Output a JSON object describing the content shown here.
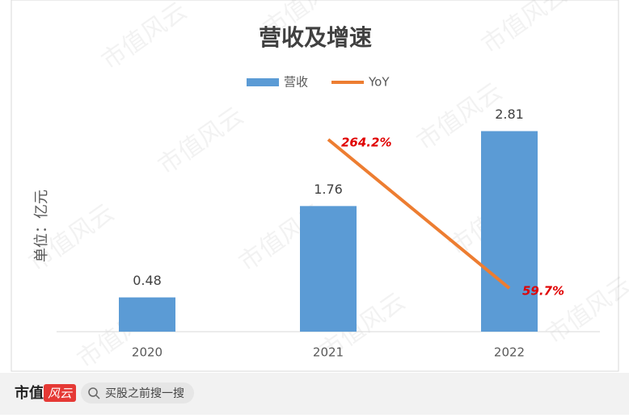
{
  "chart_data": {
    "type": "bar",
    "title": "营收及增速",
    "y_label": "单位：亿元",
    "categories": [
      "2020",
      "2021",
      "2022"
    ],
    "series": [
      {
        "name": "营收",
        "type": "bar",
        "color": "#5b9bd5",
        "values": [
          0.48,
          1.76,
          2.81
        ]
      },
      {
        "name": "YoY",
        "type": "line",
        "axis": "y2",
        "color": "#ed7d31",
        "values": [
          null,
          264.2,
          59.7
        ],
        "value_labels": [
          null,
          "264.2%",
          "59.7%"
        ]
      }
    ],
    "ylim": [
      0,
      3.2
    ],
    "y2lim": [
      0,
      314
    ],
    "legend": "top"
  },
  "watermark": "市值风云",
  "footer": {
    "brand": "市值",
    "logo": "风云",
    "search": "买股之前搜一搜"
  }
}
